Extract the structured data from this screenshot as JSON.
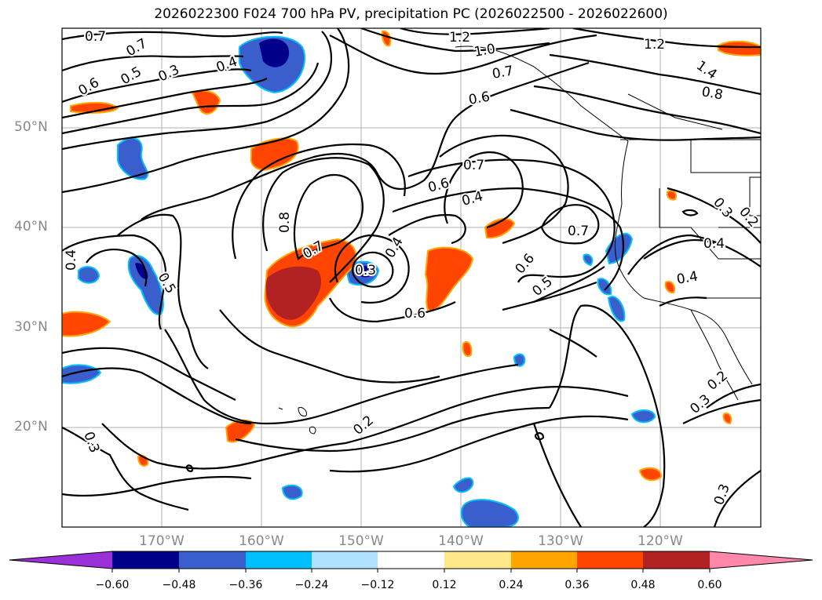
{
  "title": "2026022300 F024 700 hPa PV, precipitation PC (2026022500 - 2026022600)",
  "lat_labels": [
    "50°N",
    "40°N",
    "30°N",
    "20°N"
  ],
  "lon_labels": [
    "170°W",
    "160°W",
    "150°W",
    "140°W",
    "130°W",
    "120°W"
  ],
  "colorbar": {
    "colors": [
      "#9b30d9",
      "#00008b",
      "#3a5fcd",
      "#00bfff",
      "#b0e2ff",
      "#ffffff",
      "#ffe88a",
      "#ffa500",
      "#ff4500",
      "#b22222",
      "#ff88aa"
    ],
    "tick_labels": [
      "−0.60",
      "−0.48",
      "−0.36",
      "−0.24",
      "−0.12",
      "0.12",
      "0.24",
      "0.36",
      "0.48",
      "0.60"
    ]
  },
  "contour_labels": [
    "0.7",
    "0.7",
    "0.6",
    "0.5",
    "0.3",
    "0.4",
    "1.2",
    "1.0",
    "0.7",
    "0.6",
    "1.2",
    "1.4",
    "0.8",
    "0.7",
    "0.6",
    "0.4",
    "0.8",
    "0.7",
    "0.3",
    "0.4",
    "0.6",
    "0.6",
    "0.5",
    "0.7",
    "0.4",
    "0.5",
    "0.4",
    "0.4",
    "0.3",
    "0.2",
    "0.2",
    "0.2",
    "0.3",
    "0.3",
    "0.3"
  ]
}
